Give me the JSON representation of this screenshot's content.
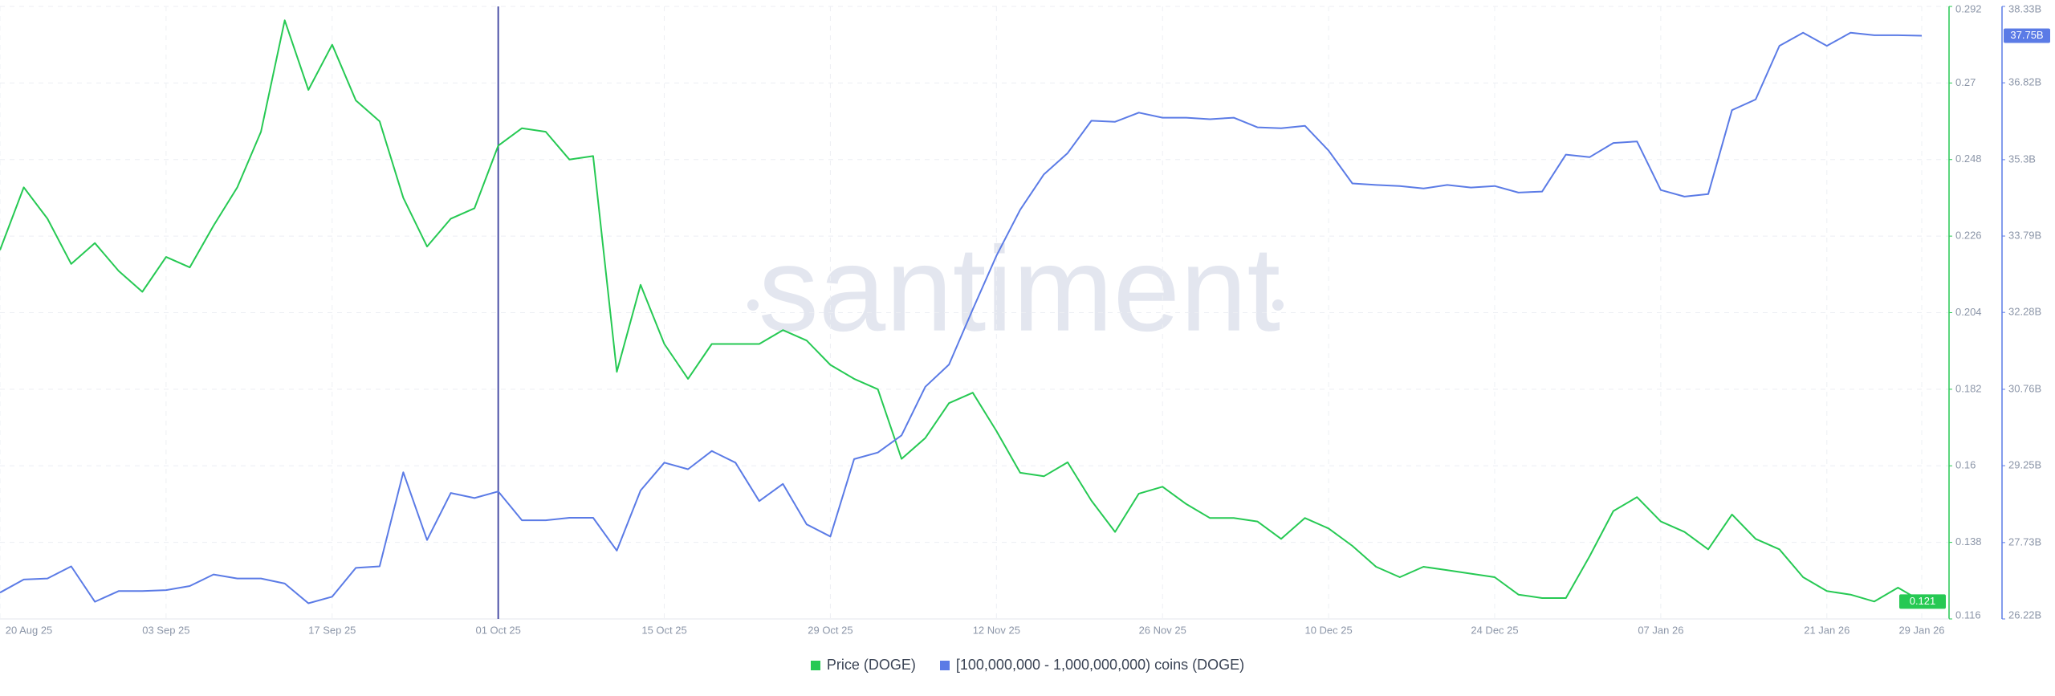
{
  "chart_data": {
    "type": "line",
    "watermark": "santiment",
    "categories": [
      "20 Aug 25",
      null,
      null,
      null,
      null,
      null,
      null,
      "03 Sep 25",
      null,
      null,
      null,
      null,
      null,
      null,
      "17 Sep 25",
      null,
      null,
      null,
      null,
      null,
      null,
      "01 Oct 25",
      null,
      null,
      null,
      null,
      null,
      null,
      "15 Oct 25",
      null,
      null,
      null,
      null,
      null,
      null,
      "29 Oct 25",
      null,
      null,
      null,
      null,
      null,
      null,
      "12 Nov 25",
      null,
      null,
      null,
      null,
      null,
      null,
      "26 Nov 25",
      null,
      null,
      null,
      null,
      null,
      null,
      "10 Dec 25",
      null,
      null,
      null,
      null,
      null,
      null,
      "24 Dec 25",
      null,
      null,
      null,
      null,
      null,
      null,
      "07 Jan 26",
      null,
      null,
      null,
      null,
      null,
      null,
      "21 Jan 26",
      null,
      null,
      null,
      "29 Jan 26"
    ],
    "crosshair": "01 Oct 25",
    "series": [
      {
        "name": "Price (DOGE)",
        "color": "#26c953",
        "axis": "y",
        "values": [
          0.222,
          0.24,
          0.231,
          0.218,
          0.224,
          0.216,
          0.21,
          0.22,
          0.217,
          0.229,
          0.24,
          0.256,
          0.288,
          0.268,
          0.281,
          0.265,
          0.259,
          0.237,
          0.223,
          0.231,
          0.234,
          0.252,
          0.257,
          0.256,
          0.248,
          0.249,
          0.187,
          0.212,
          0.195,
          0.185,
          0.195,
          0.195,
          0.195,
          0.199,
          0.196,
          0.189,
          0.185,
          0.182,
          0.162,
          0.168,
          0.178,
          0.181,
          0.17,
          0.158,
          0.157,
          0.161,
          0.15,
          0.141,
          0.152,
          0.154,
          0.149,
          0.145,
          0.145,
          0.144,
          0.139,
          0.145,
          0.142,
          0.137,
          0.131,
          0.128,
          0.131,
          0.13,
          0.129,
          0.128,
          0.123,
          0.122,
          0.122,
          0.134,
          0.147,
          0.151,
          0.144,
          0.141,
          0.136,
          0.146,
          0.139,
          0.136,
          0.128,
          0.124,
          0.123,
          0.121,
          0.125,
          0.121
        ],
        "last_label": 0.121
      },
      {
        "name": "[100,000,000 - 1,000,000,000) coins (DOGE)",
        "color": "#5b7be6",
        "axis": "y2",
        "values": [
          26.74,
          27.0,
          27.02,
          27.26,
          26.56,
          26.77,
          26.77,
          26.79,
          26.87,
          27.1,
          27.02,
          27.02,
          26.92,
          26.53,
          26.66,
          27.23,
          27.26,
          29.12,
          27.78,
          28.71,
          28.61,
          28.74,
          28.17,
          28.17,
          28.22,
          28.22,
          27.57,
          28.76,
          29.31,
          29.18,
          29.54,
          29.31,
          28.55,
          28.89,
          28.09,
          27.85,
          29.38,
          29.51,
          29.85,
          30.81,
          31.25,
          32.34,
          33.4,
          34.31,
          35.01,
          35.43,
          36.07,
          36.05,
          36.23,
          36.13,
          36.13,
          36.1,
          36.13,
          35.94,
          35.92,
          35.97,
          35.48,
          34.83,
          34.8,
          34.78,
          34.73,
          34.8,
          34.75,
          34.78,
          34.65,
          34.67,
          35.4,
          35.35,
          35.63,
          35.66,
          34.7,
          34.57,
          34.62,
          36.28,
          36.49,
          37.55,
          37.81,
          37.55,
          37.81,
          37.76,
          37.76,
          37.75
        ],
        "last_label": {
          "value": 37.75,
          "label": "37.75B"
        }
      }
    ],
    "ylim": [
      0.116,
      0.292
    ],
    "yticks": [
      0.116,
      0.138,
      0.16,
      0.182,
      0.204,
      0.226,
      0.248,
      0.27,
      0.292
    ],
    "y2lim": [
      26.22,
      38.33
    ],
    "y2ticks": [
      {
        "value": 26.22,
        "label": "26.22B"
      },
      {
        "value": 27.73,
        "label": "27.73B"
      },
      {
        "value": 29.25,
        "label": "29.25B"
      },
      {
        "value": 30.76,
        "label": "30.76B"
      },
      {
        "value": 32.28,
        "label": "32.28B"
      },
      {
        "value": 33.79,
        "label": "33.79B"
      },
      {
        "value": 35.3,
        "label": "35.3B"
      },
      {
        "value": 36.82,
        "label": "36.82B"
      },
      {
        "value": 38.33,
        "label": "38.33B"
      }
    ],
    "grid": true
  }
}
